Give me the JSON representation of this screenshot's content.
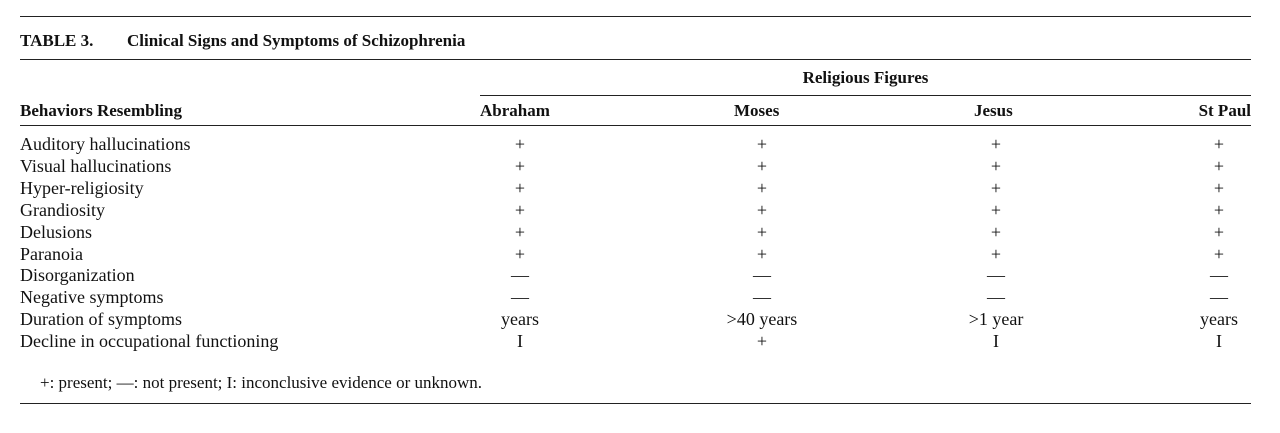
{
  "table": {
    "label": "TABLE 3.",
    "title": "Clinical Signs and Symptoms of Schizophrenia",
    "group_header": "Religious Figures",
    "row_header": "Behaviors Resembling",
    "columns": [
      "Abraham",
      "Moses",
      "Jesus",
      "St Paul"
    ],
    "rows": [
      {
        "label": "Auditory hallucinations",
        "values": [
          "+",
          "+",
          "+",
          "+"
        ]
      },
      {
        "label": "Visual hallucinations",
        "values": [
          "+",
          "+",
          "+",
          "+"
        ]
      },
      {
        "label": "Hyper-religiosity",
        "values": [
          "+",
          "+",
          "+",
          "+"
        ]
      },
      {
        "label": "Grandiosity",
        "values": [
          "+",
          "+",
          "+",
          "+"
        ]
      },
      {
        "label": "Delusions",
        "values": [
          "+",
          "+",
          "+",
          "+"
        ]
      },
      {
        "label": "Paranoia",
        "values": [
          "+",
          "+",
          "+",
          "+"
        ]
      },
      {
        "label": "Disorganization",
        "values": [
          "—",
          "—",
          "—",
          "—"
        ]
      },
      {
        "label": "Negative symptoms",
        "values": [
          "—",
          "—",
          "—",
          "—"
        ]
      },
      {
        "label": "Duration of symptoms",
        "values": [
          "years",
          ">40 years",
          ">1 year",
          "years"
        ]
      },
      {
        "label": "Decline in occupational functioning",
        "values": [
          "I",
          "+",
          "I",
          "I"
        ]
      }
    ],
    "footnote": "+: present; —: not present; I: inconclusive evidence or unknown."
  }
}
